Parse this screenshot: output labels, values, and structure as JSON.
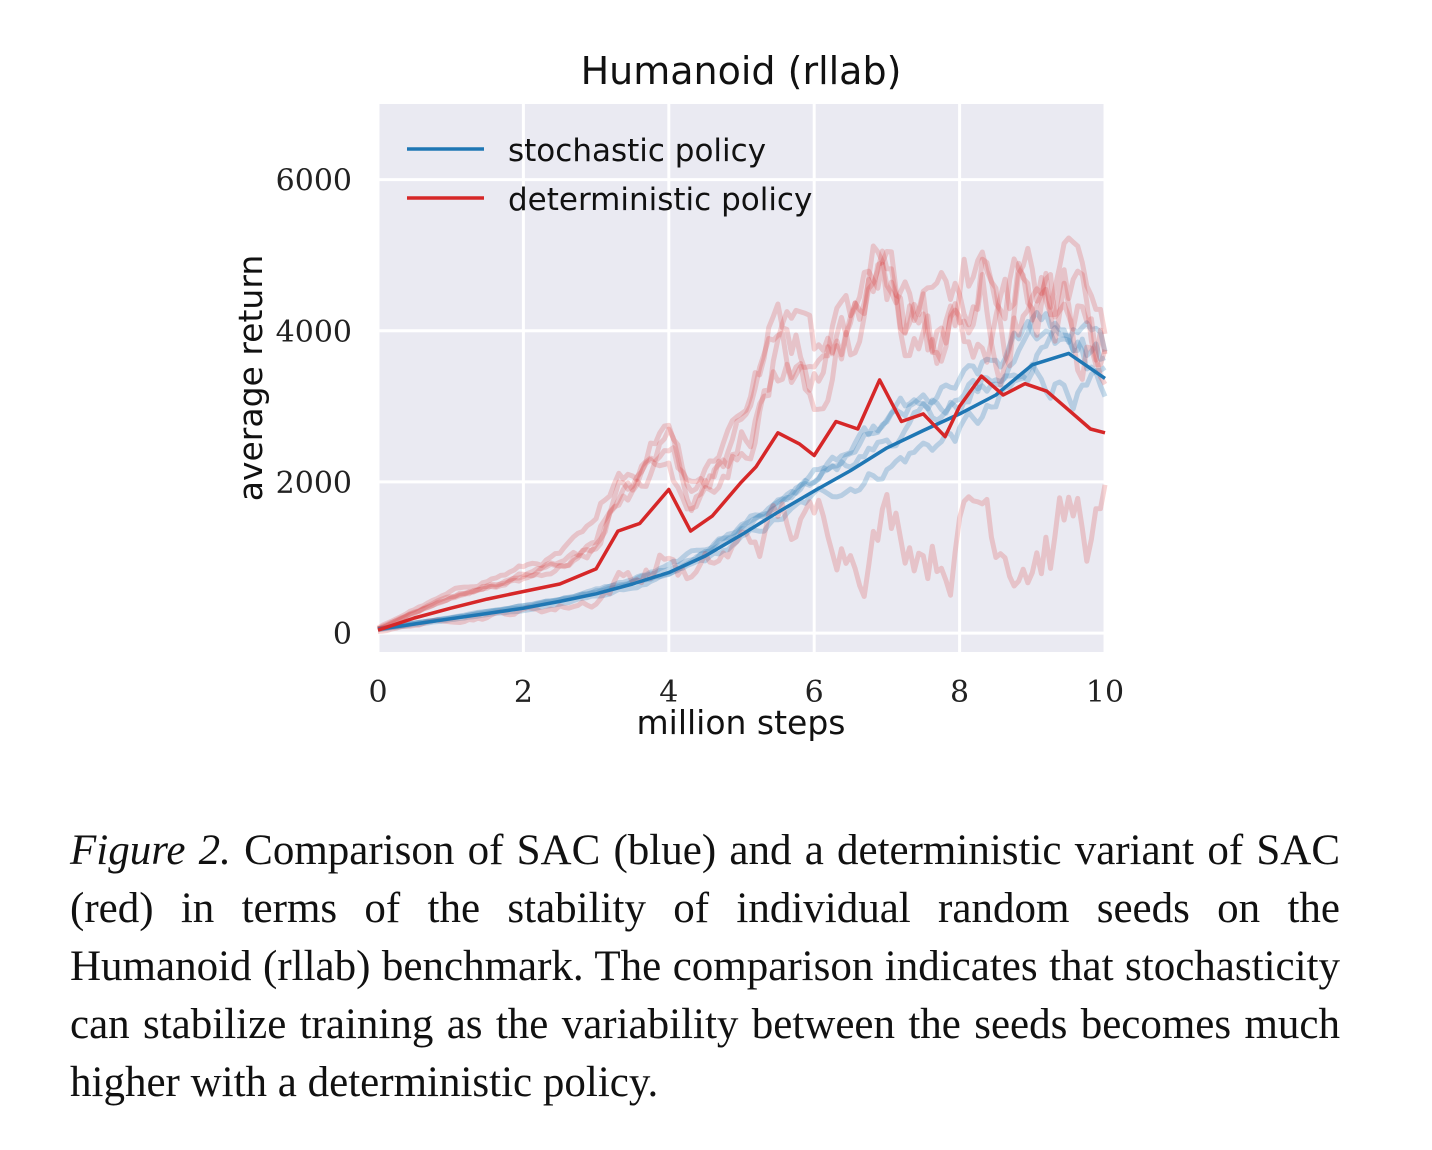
{
  "caption": {
    "label": "Figure 2.",
    "text": " Comparison of SAC (blue) and a deterministic variant of SAC (red) in terms of the stability of individual random seeds on the Humanoid (rllab) benchmark. The comparison indicates that stochasticity can stabilize training as the variability between the seeds becomes much higher with a deterministic policy."
  },
  "chart_data": {
    "type": "line",
    "title": "Humanoid (rllab)",
    "xlabel": "million steps",
    "ylabel": "average return",
    "xlim": [
      0,
      10
    ],
    "ylim": [
      -250,
      7000
    ],
    "xticks": [
      0,
      2,
      4,
      6,
      8,
      10
    ],
    "yticks": [
      0,
      2000,
      4000,
      6000
    ],
    "grid": true,
    "background": "#eaeaf2",
    "legend_position": "top-left",
    "series": [
      {
        "name": "stochastic policy",
        "color": "#1f77b4",
        "x": [
          0,
          0.5,
          1,
          1.5,
          2,
          2.5,
          3,
          3.5,
          4,
          4.5,
          5,
          5.5,
          6,
          6.5,
          7,
          7.5,
          8,
          8.5,
          9,
          9.5,
          10
        ],
        "y": [
          50,
          120,
          190,
          260,
          330,
          420,
          520,
          650,
          800,
          1020,
          1300,
          1600,
          1880,
          2150,
          2450,
          2680,
          2900,
          3150,
          3550,
          3700,
          3370
        ]
      },
      {
        "name": "deterministic policy",
        "color": "#d62728",
        "x": [
          0,
          0.5,
          1,
          1.5,
          2,
          2.5,
          3,
          3.3,
          3.6,
          4,
          4.3,
          4.6,
          5,
          5.2,
          5.5,
          5.8,
          6,
          6.3,
          6.6,
          6.9,
          7.2,
          7.5,
          7.8,
          8,
          8.3,
          8.6,
          8.9,
          9.2,
          9.5,
          9.8,
          10
        ],
        "y": [
          40,
          200,
          330,
          450,
          550,
          650,
          850,
          1350,
          1450,
          1900,
          1350,
          1550,
          2000,
          2200,
          2650,
          2500,
          2350,
          2800,
          2700,
          3350,
          2800,
          2900,
          2600,
          3000,
          3400,
          3150,
          3300,
          3200,
          2950,
          2700,
          2650
        ]
      }
    ]
  }
}
